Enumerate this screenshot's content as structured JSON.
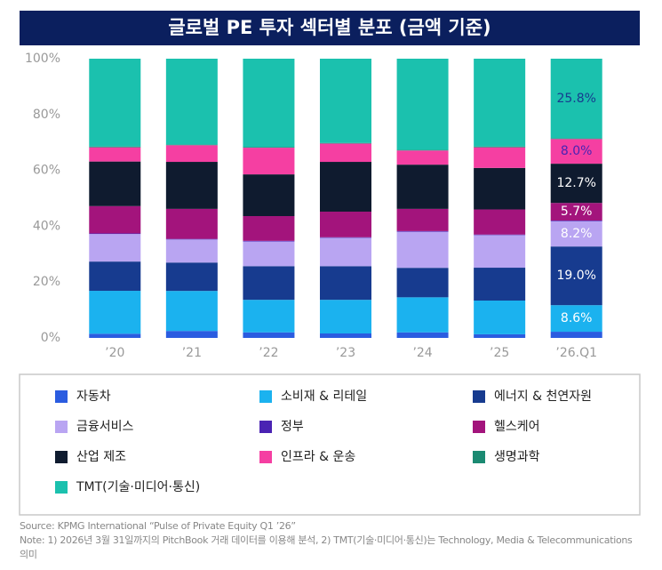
{
  "chart_data": {
    "type": "stacked_percent",
    "title": "글로벌 PE 투자 섹터별 분포 (금액 기준)",
    "categories": [
      "’20",
      "’21",
      "’22",
      "’23",
      "’24",
      "’25",
      "’26.Q1"
    ],
    "ylim": [
      0,
      100
    ],
    "yticks": [
      {
        "value": 0,
        "label": "0%"
      },
      {
        "value": 20,
        "label": "20%"
      },
      {
        "value": 40,
        "label": "40%"
      },
      {
        "value": 60,
        "label": "60%"
      },
      {
        "value": 80,
        "label": "80%"
      },
      {
        "value": 100,
        "label": "100%"
      }
    ],
    "series": [
      {
        "name": "자동차",
        "color": "#2b5ce0",
        "values": [
          1.5,
          2.5,
          2.0,
          1.6,
          2.0,
          1.3,
          2.0
        ]
      },
      {
        "name": "소비재 & 리테일",
        "color": "#1bb2ef",
        "values": [
          15.4,
          14.4,
          11.7,
          12.1,
          12.6,
          12.1,
          8.6
        ],
        "value_labels": [
          null,
          null,
          null,
          null,
          null,
          null,
          "8.6%"
        ],
        "label_color": "#ffffff"
      },
      {
        "name": "에너지 & 천연자원",
        "color": "#173b8f",
        "values": [
          10.5,
          10.2,
          12.1,
          12.1,
          10.6,
          11.8,
          19.0
        ],
        "value_labels": [
          null,
          null,
          null,
          null,
          null,
          null,
          "19.0%"
        ],
        "label_color": "#ffffff"
      },
      {
        "name": "금융서비스",
        "color": "#b9a5f2",
        "values": [
          9.9,
          8.3,
          8.9,
          10.2,
          13.0,
          11.7,
          8.2
        ],
        "value_labels": [
          null,
          null,
          null,
          null,
          null,
          null,
          "8.2%"
        ],
        "label_color": "#ffffff"
      },
      {
        "name": "정부",
        "color": "#4a23b3",
        "values": [
          0.2,
          0.2,
          0.2,
          0.2,
          0.2,
          0.2,
          0.2
        ]
      },
      {
        "name": "헬스케어",
        "color": "#a3147c",
        "values": [
          9.8,
          10.8,
          8.9,
          9.2,
          8.0,
          9.0,
          5.7
        ],
        "value_labels": [
          null,
          null,
          null,
          null,
          null,
          null,
          "5.7%"
        ],
        "label_color": "#ffffff"
      },
      {
        "name": "산업 제조",
        "color": "#0f1b2f",
        "values": [
          16.0,
          16.9,
          15.0,
          17.9,
          15.9,
          14.9,
          12.7
        ],
        "value_labels": [
          null,
          null,
          null,
          null,
          null,
          null,
          "12.7%"
        ],
        "label_color": "#ffffff"
      },
      {
        "name": "인프라 & 운송",
        "color": "#f53fa2",
        "values": [
          5.1,
          6.0,
          9.6,
          6.6,
          5.1,
          7.4,
          8.0
        ],
        "value_labels": [
          null,
          null,
          null,
          null,
          null,
          null,
          "8.0%"
        ],
        "label_color": "#4a23b3"
      },
      {
        "name": "생명과학",
        "color": "#1b8a72",
        "values": [
          0.3,
          0.2,
          0.2,
          0.2,
          0.2,
          0.3,
          0.2
        ]
      },
      {
        "name": "TMT(기술·미디어·통신)",
        "color": "#1bc1ae",
        "values": [
          31.5,
          30.9,
          31.8,
          30.3,
          32.8,
          31.5,
          25.8
        ],
        "value_labels": [
          null,
          null,
          null,
          null,
          null,
          null,
          "25.8%"
        ],
        "label_color": "#173b8f"
      }
    ],
    "source": "Source: KPMG International “Pulse of Private Equity Q1 ’26”",
    "note": "Note: 1) 2026년 3월 31일까지의 PitchBook 거래 데이터를 이용해 분석, 2) TMT(기술·미디어·통신)는 Technology, Media & Telecommunications 의미"
  }
}
